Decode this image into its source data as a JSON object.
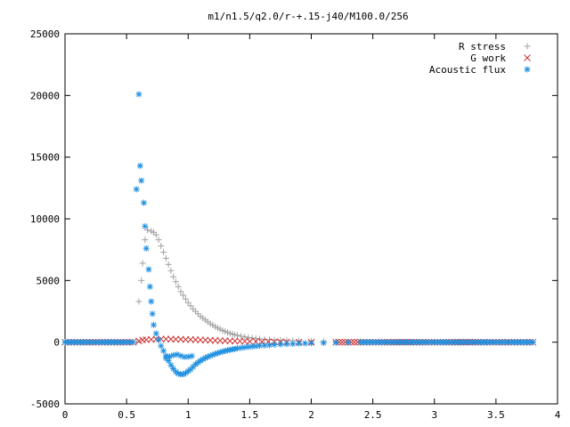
{
  "chart_data": {
    "type": "scatter",
    "title": "m1/n1.5/q2.0/r-+.15-j40/M100.0/256",
    "xlabel": "",
    "ylabel": "",
    "xlim": [
      0,
      4
    ],
    "ylim": [
      -5000,
      25000
    ],
    "x_ticks": [
      "0",
      "0.5",
      "1",
      "1.5",
      "2",
      "2.5",
      "3",
      "3.5",
      "4"
    ],
    "y_ticks": [
      "-5000",
      "0",
      "5000",
      "10000",
      "15000",
      "20000",
      "25000"
    ],
    "grid": false,
    "legend_position": "top-right",
    "series": [
      {
        "name": "R stress",
        "marker": "plus",
        "color": "#a0a0a0",
        "points": [
          [
            0.0,
            0
          ],
          [
            0.1,
            0
          ],
          [
            0.2,
            0
          ],
          [
            0.3,
            0
          ],
          [
            0.4,
            0
          ],
          [
            0.5,
            0
          ],
          [
            0.55,
            0
          ],
          [
            0.58,
            0
          ],
          [
            0.6,
            3300
          ],
          [
            0.62,
            5000
          ],
          [
            0.63,
            6400
          ],
          [
            0.65,
            8300
          ],
          [
            0.67,
            9100
          ],
          [
            0.7,
            9000
          ],
          [
            0.72,
            8900
          ],
          [
            0.74,
            8700
          ],
          [
            0.76,
            8300
          ],
          [
            0.78,
            7800
          ],
          [
            0.8,
            7300
          ],
          [
            0.82,
            6800
          ],
          [
            0.84,
            6300
          ],
          [
            0.86,
            5800
          ],
          [
            0.88,
            5300
          ],
          [
            0.9,
            4900
          ],
          [
            0.92,
            4500
          ],
          [
            0.94,
            4100
          ],
          [
            0.96,
            3800
          ],
          [
            0.98,
            3500
          ],
          [
            1.0,
            3200
          ],
          [
            1.02,
            2950
          ],
          [
            1.04,
            2700
          ],
          [
            1.06,
            2500
          ],
          [
            1.08,
            2300
          ],
          [
            1.1,
            2100
          ],
          [
            1.12,
            1950
          ],
          [
            1.14,
            1800
          ],
          [
            1.16,
            1650
          ],
          [
            1.18,
            1500
          ],
          [
            1.2,
            1380
          ],
          [
            1.22,
            1260
          ],
          [
            1.24,
            1150
          ],
          [
            1.26,
            1050
          ],
          [
            1.28,
            950
          ],
          [
            1.3,
            870
          ],
          [
            1.32,
            790
          ],
          [
            1.34,
            720
          ],
          [
            1.36,
            660
          ],
          [
            1.38,
            600
          ],
          [
            1.4,
            550
          ],
          [
            1.43,
            490
          ],
          [
            1.46,
            430
          ],
          [
            1.49,
            380
          ],
          [
            1.52,
            340
          ],
          [
            1.55,
            300
          ],
          [
            1.58,
            270
          ],
          [
            1.62,
            240
          ],
          [
            1.66,
            210
          ],
          [
            1.7,
            180
          ],
          [
            1.75,
            160
          ],
          [
            1.8,
            140
          ],
          [
            1.85,
            120
          ],
          [
            1.9,
            100
          ],
          [
            2.0,
            80
          ],
          [
            2.1,
            60
          ],
          [
            2.2,
            45
          ],
          [
            2.4,
            30
          ],
          [
            2.6,
            20
          ],
          [
            2.8,
            12
          ],
          [
            3.0,
            8
          ],
          [
            3.2,
            5
          ],
          [
            3.4,
            3
          ],
          [
            3.6,
            2
          ],
          [
            3.8,
            1
          ]
        ]
      },
      {
        "name": "G work",
        "marker": "cross",
        "color": "#cc3333",
        "points": [
          [
            0.0,
            0
          ],
          [
            0.2,
            0
          ],
          [
            0.4,
            0
          ],
          [
            0.55,
            0
          ],
          [
            0.6,
            100
          ],
          [
            0.63,
            180
          ],
          [
            0.66,
            200
          ],
          [
            0.7,
            220
          ],
          [
            0.74,
            240
          ],
          [
            0.78,
            250
          ],
          [
            0.82,
            250
          ],
          [
            0.86,
            245
          ],
          [
            0.9,
            240
          ],
          [
            0.94,
            230
          ],
          [
            0.98,
            220
          ],
          [
            1.02,
            210
          ],
          [
            1.06,
            200
          ],
          [
            1.1,
            185
          ],
          [
            1.14,
            170
          ],
          [
            1.18,
            155
          ],
          [
            1.22,
            140
          ],
          [
            1.26,
            125
          ],
          [
            1.3,
            110
          ],
          [
            1.34,
            100
          ],
          [
            1.38,
            90
          ],
          [
            1.42,
            80
          ],
          [
            1.46,
            70
          ],
          [
            1.5,
            60
          ],
          [
            1.55,
            50
          ],
          [
            1.6,
            40
          ],
          [
            1.65,
            30
          ],
          [
            1.7,
            25
          ],
          [
            1.75,
            20
          ],
          [
            1.8,
            15
          ],
          [
            1.9,
            10
          ],
          [
            2.0,
            5
          ],
          [
            2.2,
            0
          ],
          [
            2.5,
            0
          ],
          [
            3.0,
            0
          ],
          [
            3.5,
            0
          ],
          [
            3.8,
            0
          ]
        ]
      },
      {
        "name": "Acoustic flux",
        "marker": "star",
        "color": "#1e90e0",
        "points": [
          [
            0.0,
            0
          ],
          [
            0.05,
            0
          ],
          [
            0.1,
            0
          ],
          [
            0.15,
            0
          ],
          [
            0.2,
            0
          ],
          [
            0.25,
            0
          ],
          [
            0.3,
            0
          ],
          [
            0.35,
            0
          ],
          [
            0.4,
            0
          ],
          [
            0.45,
            0
          ],
          [
            0.5,
            0
          ],
          [
            0.55,
            0
          ],
          [
            0.58,
            12400
          ],
          [
            0.6,
            20100
          ],
          [
            0.61,
            14300
          ],
          [
            0.62,
            13100
          ],
          [
            0.64,
            11300
          ],
          [
            0.65,
            9400
          ],
          [
            0.66,
            7600
          ],
          [
            0.68,
            5900
          ],
          [
            0.69,
            4500
          ],
          [
            0.7,
            3300
          ],
          [
            0.71,
            2300
          ],
          [
            0.72,
            1400
          ],
          [
            0.74,
            700
          ],
          [
            0.76,
            200
          ],
          [
            0.78,
            -300
          ],
          [
            0.8,
            -700
          ],
          [
            0.82,
            -1100
          ],
          [
            0.84,
            -1500
          ],
          [
            0.86,
            -1850
          ],
          [
            0.88,
            -2150
          ],
          [
            0.9,
            -2400
          ],
          [
            0.92,
            -2550
          ],
          [
            0.94,
            -2600
          ],
          [
            0.96,
            -2600
          ],
          [
            0.98,
            -2500
          ],
          [
            1.0,
            -2350
          ],
          [
            1.02,
            -2200
          ],
          [
            1.04,
            -2000
          ],
          [
            1.06,
            -1800
          ],
          [
            1.08,
            -1650
          ],
          [
            1.1,
            -1500
          ],
          [
            1.12,
            -1380
          ],
          [
            1.14,
            -1280
          ],
          [
            1.16,
            -1180
          ],
          [
            1.18,
            -1100
          ],
          [
            1.2,
            -1020
          ],
          [
            1.22,
            -950
          ],
          [
            1.24,
            -880
          ],
          [
            1.26,
            -820
          ],
          [
            1.28,
            -760
          ],
          [
            1.3,
            -710
          ],
          [
            1.32,
            -660
          ],
          [
            1.34,
            -620
          ],
          [
            1.36,
            -580
          ],
          [
            1.38,
            -540
          ],
          [
            1.4,
            -500
          ],
          [
            1.43,
            -460
          ],
          [
            1.46,
            -420
          ],
          [
            1.49,
            -380
          ],
          [
            1.52,
            -350
          ],
          [
            1.55,
            -320
          ],
          [
            1.58,
            -290
          ],
          [
            1.62,
            -260
          ],
          [
            1.66,
            -230
          ],
          [
            1.7,
            -200
          ],
          [
            1.75,
            -170
          ],
          [
            1.8,
            -150
          ],
          [
            1.85,
            -130
          ],
          [
            1.9,
            -110
          ],
          [
            1.95,
            -90
          ],
          [
            2.0,
            -75
          ],
          [
            2.1,
            -50
          ],
          [
            2.2,
            -30
          ],
          [
            2.3,
            -15
          ],
          [
            2.4,
            0
          ],
          [
            2.6,
            0
          ],
          [
            2.8,
            0
          ],
          [
            3.0,
            0
          ],
          [
            3.2,
            0
          ],
          [
            3.4,
            0
          ],
          [
            3.6,
            0
          ],
          [
            3.8,
            0
          ],
          [
            0.82,
            -1300
          ],
          [
            0.85,
            -1150
          ],
          [
            0.88,
            -1050
          ],
          [
            0.91,
            -1000
          ],
          [
            0.94,
            -1100
          ],
          [
            0.97,
            -1200
          ],
          [
            1.0,
            -1180
          ],
          [
            1.03,
            -1120
          ]
        ]
      }
    ]
  }
}
